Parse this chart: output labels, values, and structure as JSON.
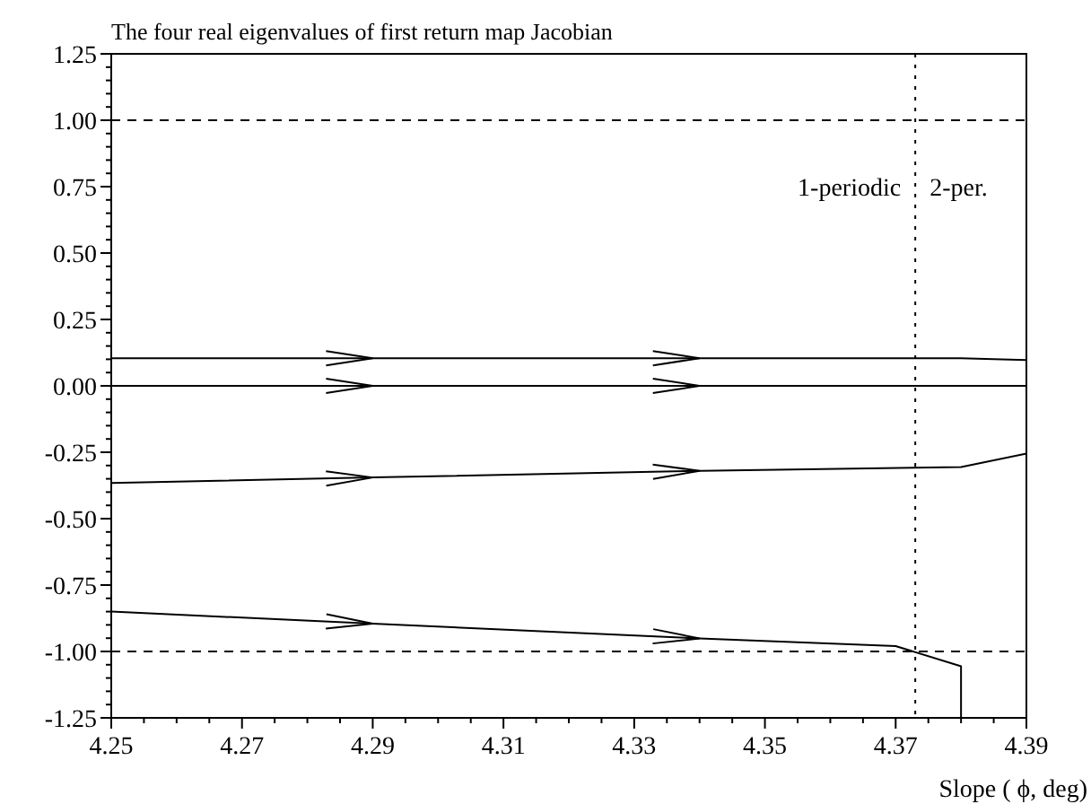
{
  "chart_data": {
    "type": "line",
    "title": "The four real eigenvalues of first return map Jacobian",
    "xlabel": "Slope ( ϕ, deg)",
    "xlim": [
      4.25,
      4.39
    ],
    "ylim": [
      -1.25,
      1.25
    ],
    "xticks": [
      {
        "value": 4.25,
        "label": "4.25"
      },
      {
        "value": 4.255,
        "label": null
      },
      {
        "value": 4.26,
        "label": null
      },
      {
        "value": 4.265,
        "label": null
      },
      {
        "value": 4.27,
        "label": "4.27"
      },
      {
        "value": 4.275,
        "label": null
      },
      {
        "value": 4.28,
        "label": null
      },
      {
        "value": 4.285,
        "label": null
      },
      {
        "value": 4.29,
        "label": "4.29"
      },
      {
        "value": 4.295,
        "label": null
      },
      {
        "value": 4.3,
        "label": null
      },
      {
        "value": 4.305,
        "label": null
      },
      {
        "value": 4.31,
        "label": "4.31"
      },
      {
        "value": 4.315,
        "label": null
      },
      {
        "value": 4.32,
        "label": null
      },
      {
        "value": 4.325,
        "label": null
      },
      {
        "value": 4.33,
        "label": "4.33"
      },
      {
        "value": 4.335,
        "label": null
      },
      {
        "value": 4.34,
        "label": null
      },
      {
        "value": 4.345,
        "label": null
      },
      {
        "value": 4.35,
        "label": "4.35"
      },
      {
        "value": 4.355,
        "label": null
      },
      {
        "value": 4.36,
        "label": null
      },
      {
        "value": 4.365,
        "label": null
      },
      {
        "value": 4.37,
        "label": "4.37"
      },
      {
        "value": 4.375,
        "label": null
      },
      {
        "value": 4.38,
        "label": null
      },
      {
        "value": 4.385,
        "label": null
      },
      {
        "value": 4.39,
        "label": "4.39"
      }
    ],
    "yticks": [
      {
        "value": -1.25,
        "label": "-1.25"
      },
      {
        "value": -1.2,
        "label": null
      },
      {
        "value": -1.15,
        "label": null
      },
      {
        "value": -1.1,
        "label": null
      },
      {
        "value": -1.05,
        "label": null
      },
      {
        "value": -1,
        "label": "-1.00"
      },
      {
        "value": -0.95,
        "label": null
      },
      {
        "value": -0.9,
        "label": null
      },
      {
        "value": -0.85,
        "label": null
      },
      {
        "value": -0.8,
        "label": null
      },
      {
        "value": -0.75,
        "label": "-0.75"
      },
      {
        "value": -0.7,
        "label": null
      },
      {
        "value": -0.65,
        "label": null
      },
      {
        "value": -0.6,
        "label": null
      },
      {
        "value": -0.55,
        "label": null
      },
      {
        "value": -0.5,
        "label": "-0.50"
      },
      {
        "value": -0.45,
        "label": null
      },
      {
        "value": -0.4,
        "label": null
      },
      {
        "value": -0.35,
        "label": null
      },
      {
        "value": -0.3,
        "label": null
      },
      {
        "value": -0.25,
        "label": "-0.25"
      },
      {
        "value": -0.2,
        "label": null
      },
      {
        "value": -0.15,
        "label": null
      },
      {
        "value": -0.1,
        "label": null
      },
      {
        "value": -0.05,
        "label": null
      },
      {
        "value": 0,
        "label": "0.00"
      },
      {
        "value": 0.05,
        "label": null
      },
      {
        "value": 0.1,
        "label": null
      },
      {
        "value": 0.15,
        "label": null
      },
      {
        "value": 0.2,
        "label": null
      },
      {
        "value": 0.25,
        "label": "0.25"
      },
      {
        "value": 0.3,
        "label": null
      },
      {
        "value": 0.35,
        "label": null
      },
      {
        "value": 0.4,
        "label": null
      },
      {
        "value": 0.45,
        "label": null
      },
      {
        "value": 0.5,
        "label": "0.50"
      },
      {
        "value": 0.55,
        "label": null
      },
      {
        "value": 0.6,
        "label": null
      },
      {
        "value": 0.65,
        "label": null
      },
      {
        "value": 0.7,
        "label": null
      },
      {
        "value": 0.75,
        "label": "0.75"
      },
      {
        "value": 0.8,
        "label": null
      },
      {
        "value": 0.85,
        "label": null
      },
      {
        "value": 0.9,
        "label": null
      },
      {
        "value": 0.95,
        "label": null
      },
      {
        "value": 1,
        "label": "1.00"
      },
      {
        "value": 1.05,
        "label": null
      },
      {
        "value": 1.1,
        "label": null
      },
      {
        "value": 1.15,
        "label": null
      },
      {
        "value": 1.2,
        "label": null
      },
      {
        "value": 1.25,
        "label": "1.25"
      }
    ],
    "grid": false,
    "marker": "none",
    "line_style": "solid",
    "series": [
      {
        "color": "#000000",
        "x": [
          4.25,
          4.29,
          4.34,
          4.38,
          4.39
        ],
        "values": [
          0.104,
          0.104,
          0.104,
          0.104,
          0.097
        ]
      },
      {
        "color": "#000000",
        "x": [
          4.25,
          4.29,
          4.34,
          4.38,
          4.39
        ],
        "values": [
          0,
          0,
          0,
          0,
          0
        ]
      },
      {
        "color": "#000000",
        "x": [
          4.25,
          4.29,
          4.34,
          4.38,
          4.39
        ],
        "values": [
          -0.366,
          -0.345,
          -0.32,
          -0.306,
          -0.255
        ]
      },
      {
        "color": "#000000",
        "x": [
          4.25,
          4.29,
          4.34,
          4.37,
          4.38,
          4.38
        ],
        "values": [
          -0.85,
          -0.895,
          -0.951,
          -0.98,
          -1.056,
          -1.25
        ]
      }
    ],
    "ref_lines": [
      {
        "axis": "y",
        "value": 1,
        "line_style": "dashed",
        "color": "#000000"
      },
      {
        "axis": "y",
        "value": -1,
        "line_style": "dashed",
        "color": "#000000"
      },
      {
        "axis": "x",
        "value": 4.373,
        "line_style": "dotted",
        "color": "#000000"
      }
    ],
    "annotations": [
      "1-periodic",
      "2-per."
    ]
  }
}
